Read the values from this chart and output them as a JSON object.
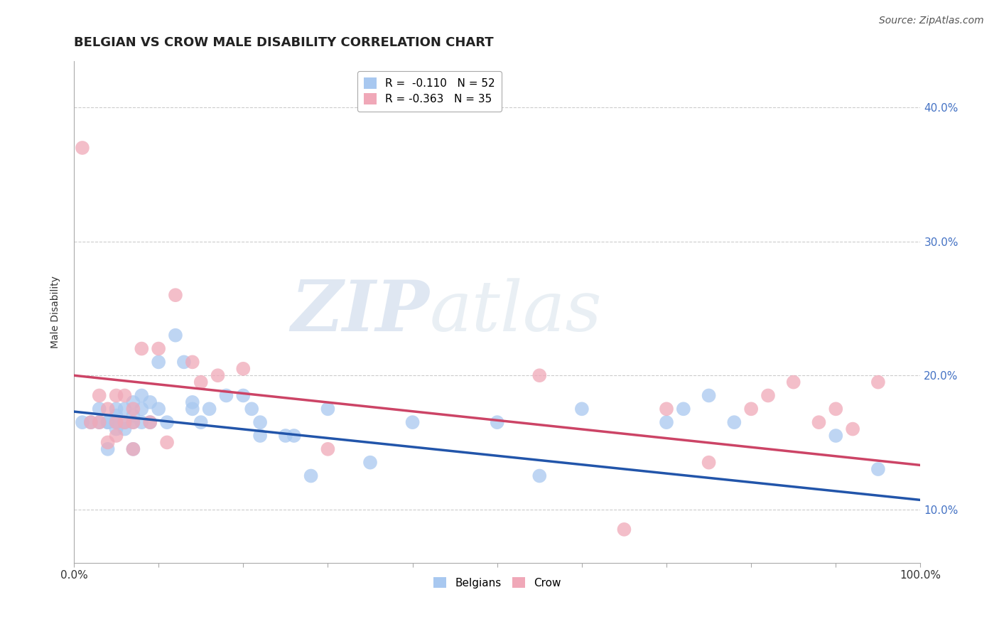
{
  "title": "BELGIAN VS CROW MALE DISABILITY CORRELATION CHART",
  "source": "Source: ZipAtlas.com",
  "ylabel": "Male Disability",
  "watermark_zip": "ZIP",
  "watermark_atlas": "atlas",
  "xlim": [
    0.0,
    1.0
  ],
  "ylim": [
    0.06,
    0.435
  ],
  "xticks": [
    0.0,
    0.1,
    0.2,
    0.3,
    0.4,
    0.5,
    0.6,
    0.7,
    0.8,
    0.9,
    1.0
  ],
  "yticks": [
    0.1,
    0.2,
    0.3,
    0.4
  ],
  "ytick_labels": [
    "10.0%",
    "20.0%",
    "30.0%",
    "40.0%"
  ],
  "legend_entry1": "R =  -0.110   N = 52",
  "legend_entry2": "R = -0.363   N = 35",
  "legend_label1": "Belgians",
  "legend_label2": "Crow",
  "blue_color": "#a8c8f0",
  "pink_color": "#f0a8b8",
  "blue_line_color": "#2255aa",
  "pink_line_color": "#cc4466",
  "blue_x": [
    0.01,
    0.02,
    0.03,
    0.03,
    0.04,
    0.04,
    0.04,
    0.05,
    0.05,
    0.05,
    0.05,
    0.06,
    0.06,
    0.06,
    0.07,
    0.07,
    0.07,
    0.07,
    0.08,
    0.08,
    0.08,
    0.09,
    0.09,
    0.1,
    0.1,
    0.11,
    0.12,
    0.13,
    0.14,
    0.14,
    0.15,
    0.16,
    0.18,
    0.2,
    0.21,
    0.22,
    0.22,
    0.25,
    0.26,
    0.28,
    0.3,
    0.35,
    0.4,
    0.5,
    0.55,
    0.6,
    0.7,
    0.72,
    0.75,
    0.78,
    0.9,
    0.95
  ],
  "blue_y": [
    0.165,
    0.165,
    0.175,
    0.165,
    0.165,
    0.165,
    0.145,
    0.175,
    0.17,
    0.165,
    0.16,
    0.175,
    0.165,
    0.16,
    0.18,
    0.17,
    0.165,
    0.145,
    0.185,
    0.175,
    0.165,
    0.18,
    0.165,
    0.21,
    0.175,
    0.165,
    0.23,
    0.21,
    0.18,
    0.175,
    0.165,
    0.175,
    0.185,
    0.185,
    0.175,
    0.165,
    0.155,
    0.155,
    0.155,
    0.125,
    0.175,
    0.135,
    0.165,
    0.165,
    0.125,
    0.175,
    0.165,
    0.175,
    0.185,
    0.165,
    0.155,
    0.13
  ],
  "pink_x": [
    0.01,
    0.02,
    0.03,
    0.03,
    0.04,
    0.04,
    0.05,
    0.05,
    0.06,
    0.06,
    0.07,
    0.07,
    0.07,
    0.08,
    0.09,
    0.1,
    0.11,
    0.12,
    0.14,
    0.15,
    0.17,
    0.2,
    0.3,
    0.55,
    0.65,
    0.7,
    0.75,
    0.8,
    0.82,
    0.85,
    0.88,
    0.9,
    0.92,
    0.95,
    0.05
  ],
  "pink_y": [
    0.37,
    0.165,
    0.185,
    0.165,
    0.175,
    0.15,
    0.185,
    0.165,
    0.185,
    0.165,
    0.175,
    0.165,
    0.145,
    0.22,
    0.165,
    0.22,
    0.15,
    0.26,
    0.21,
    0.195,
    0.2,
    0.205,
    0.145,
    0.2,
    0.085,
    0.175,
    0.135,
    0.175,
    0.185,
    0.195,
    0.165,
    0.175,
    0.16,
    0.195,
    0.155
  ],
  "blue_line_x": [
    0.0,
    1.0
  ],
  "blue_line_y": [
    0.173,
    0.107
  ],
  "pink_line_x": [
    0.0,
    1.0
  ],
  "pink_line_y": [
    0.2,
    0.133
  ],
  "title_fontsize": 13,
  "axis_fontsize": 10,
  "tick_fontsize": 11,
  "source_fontsize": 10,
  "legend_fontsize": 11,
  "background_color": "#ffffff",
  "grid_color": "#cccccc",
  "title_color": "#222222",
  "tick_color": "#4472C4"
}
